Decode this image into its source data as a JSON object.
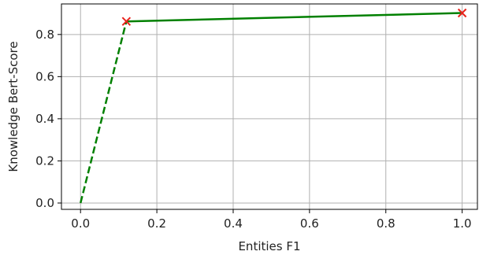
{
  "chart_data": {
    "type": "line",
    "title": "",
    "xlabel": "Entities F1",
    "ylabel": "Knowledge Bert-Score",
    "xlim": [
      -0.05,
      1.04
    ],
    "ylim": [
      -0.03,
      0.945
    ],
    "x_ticks": [
      0.0,
      0.2,
      0.4,
      0.6,
      0.8,
      1.0
    ],
    "x_tick_labels": [
      "0.0",
      "0.2",
      "0.4",
      "0.6",
      "0.8",
      "1.0"
    ],
    "y_ticks": [
      0.0,
      0.2,
      0.4,
      0.6,
      0.8
    ],
    "y_tick_labels": [
      "0.0",
      "0.2",
      "0.4",
      "0.6",
      "0.8"
    ],
    "grid": true,
    "series": [
      {
        "style": "dashed",
        "color": "#008000",
        "x": [
          0.0,
          0.12
        ],
        "y": [
          0.0,
          0.862
        ]
      },
      {
        "style": "solid",
        "color": "#008000",
        "x": [
          0.12,
          1.0
        ],
        "y": [
          0.862,
          0.902
        ]
      }
    ],
    "markers": {
      "shape": "x",
      "color": "#e8231c",
      "points": [
        {
          "x": 0.12,
          "y": 0.862
        },
        {
          "x": 1.0,
          "y": 0.902
        }
      ]
    }
  }
}
